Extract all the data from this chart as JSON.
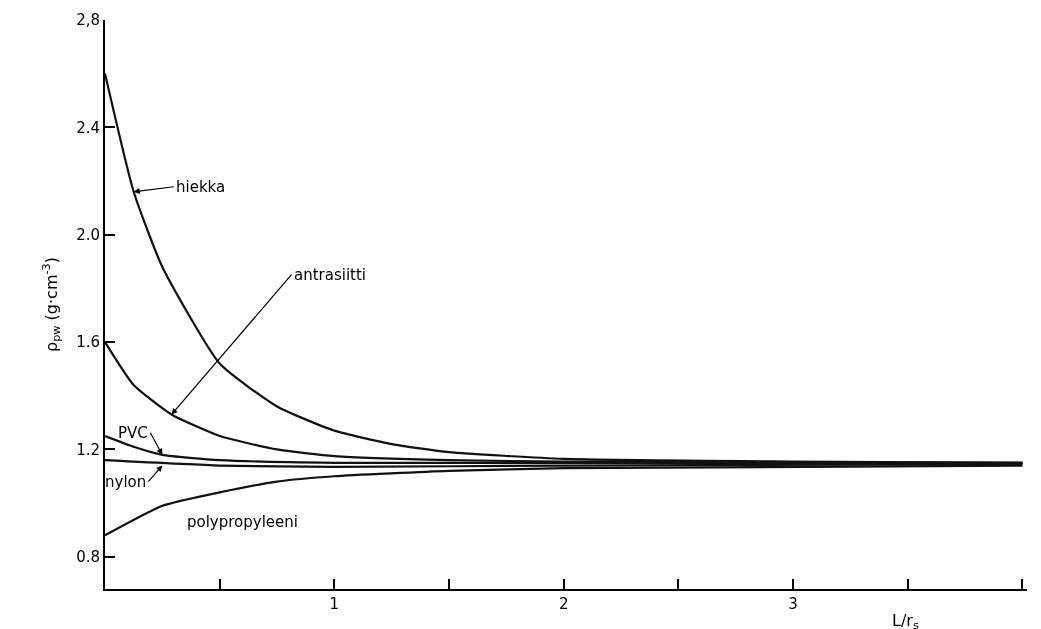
{
  "chart_data": {
    "type": "line",
    "xlabel": "L/r$_{s}$",
    "ylabel": "ρ$_{pw}$ (g·cm$^{-3}$)",
    "xlim": [
      0,
      4.02
    ],
    "ylim": [
      0.68,
      2.8
    ],
    "xticks": [
      {
        "value": 0.5,
        "label": null
      },
      1,
      {
        "value": 1.5,
        "label": null
      },
      2,
      {
        "value": 2.5,
        "label": null
      },
      3,
      {
        "value": 3.5,
        "label": null
      },
      {
        "value": 4,
        "label": null
      }
    ],
    "yticks": [
      {
        "value": 0.8,
        "label": "0.8"
      },
      1.2,
      1.6,
      {
        "value": 2.0,
        "label": "2.0"
      },
      2.4,
      {
        "value": 2.8,
        "label": "2,8"
      }
    ],
    "marker": "none",
    "line_style": "solid",
    "series": [
      {
        "color": "#111111",
        "x": [
          0,
          0.125,
          0.25,
          0.5,
          0.75,
          1,
          1.25,
          1.5,
          2,
          3,
          4
        ],
        "values": [
          2.6,
          2.16,
          1.88,
          1.52,
          1.36,
          1.27,
          1.22,
          1.19,
          1.165,
          1.155,
          1.15
        ]
      },
      {
        "color": "#111111",
        "x": [
          0,
          0.125,
          0.29,
          0.5,
          0.75,
          1,
          1.5,
          2,
          4
        ],
        "values": [
          1.6,
          1.44,
          1.33,
          1.25,
          1.2,
          1.175,
          1.16,
          1.155,
          1.15
        ]
      },
      {
        "color": "#111111",
        "x": [
          0,
          0.125,
          0.25,
          0.5,
          1,
          4
        ],
        "values": [
          1.25,
          1.21,
          1.18,
          1.16,
          1.15,
          1.15
        ]
      },
      {
        "color": "#111111",
        "x": [
          0,
          0.5,
          1,
          2,
          4
        ],
        "values": [
          1.16,
          1.14,
          1.135,
          1.14,
          1.145
        ]
      },
      {
        "color": "#111111",
        "x": [
          0,
          0.25,
          0.5,
          0.75,
          1,
          1.5,
          2,
          4
        ],
        "values": [
          0.88,
          0.99,
          1.04,
          1.08,
          1.1,
          1.12,
          1.13,
          1.14
        ]
      }
    ],
    "annotations": [
      {
        "text": "hiekka",
        "x": 0.125,
        "y": 2.16
      },
      {
        "text": "antrasiitti",
        "x": 0.29,
        "y": 1.33
      },
      {
        "text": "PVC",
        "x": 0.25,
        "y": 1.18
      },
      {
        "text": "nylon",
        "x": 0.25,
        "y": 1.14
      },
      "polypropyleeni"
    ]
  }
}
